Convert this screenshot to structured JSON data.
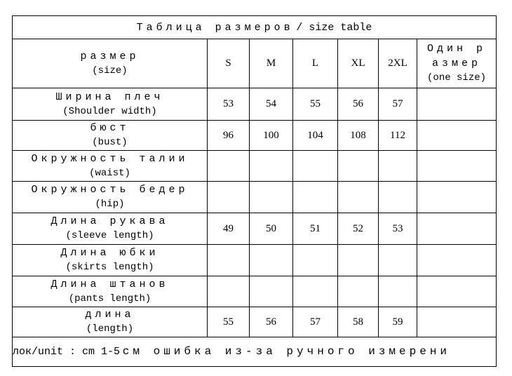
{
  "title": {
    "ru": "Таблица размеров",
    "en": "/ size table"
  },
  "header": {
    "label_ru": "размер",
    "label_en": "(size)",
    "sizes": [
      "S",
      "M",
      "L",
      "XL",
      "2XL"
    ],
    "one_size_ru_1": "Один р",
    "one_size_ru_2": "азмер",
    "one_size_en": "(one size)"
  },
  "rows": [
    {
      "ru": "Ширина плеч",
      "en": "(Shoulder width)",
      "values": [
        "53",
        "54",
        "55",
        "56",
        "57",
        ""
      ]
    },
    {
      "ru": "бюст",
      "en": "(bust)",
      "values": [
        "96",
        "100",
        "104",
        "108",
        "112",
        ""
      ]
    },
    {
      "ru": "Окружность талии",
      "en": "(waist)",
      "values": [
        "",
        "",
        "",
        "",
        "",
        ""
      ]
    },
    {
      "ru": "Окружность бедер",
      "en": "(hip)",
      "values": [
        "",
        "",
        "",
        "",
        "",
        ""
      ]
    },
    {
      "ru": "Длина рукава",
      "en": "(sleeve length)",
      "values": [
        "49",
        "50",
        "51",
        "52",
        "53",
        ""
      ]
    },
    {
      "ru": "Длина юбки",
      "en": "(skirts length)",
      "values": [
        "",
        "",
        "",
        "",
        "",
        ""
      ]
    },
    {
      "ru": "Длина штанов",
      "en": "(pants length)",
      "values": [
        "",
        "",
        "",
        "",
        "",
        ""
      ]
    },
    {
      "ru": "длина",
      "en": "(length)",
      "values": [
        "55",
        "56",
        "57",
        "58",
        "59",
        ""
      ]
    }
  ],
  "footer": {
    "unit": "лок/unit : cm  1-5",
    "note": "см ошибка из-за ручного измерени"
  }
}
